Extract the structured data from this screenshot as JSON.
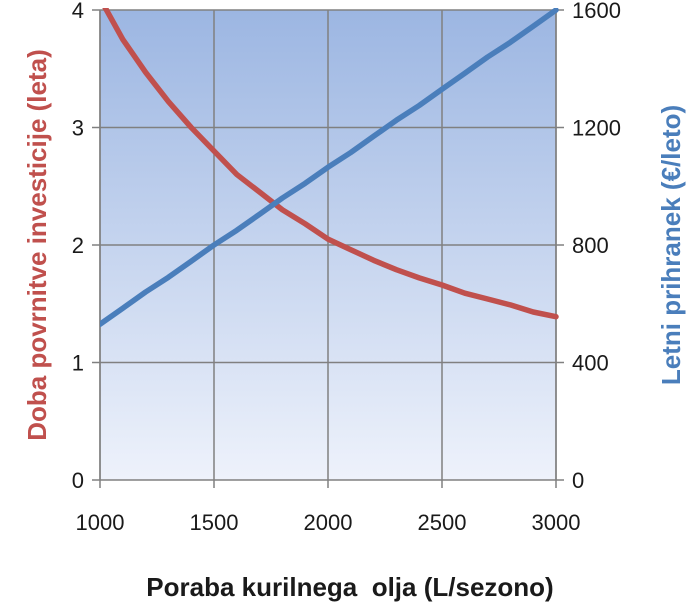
{
  "chart_data": {
    "type": "line",
    "xlabel": "Poraba kurilnega  olja (L/sezono)",
    "ylabel_left": "Doba povrnitve  investicije  (leta)",
    "ylabel_right": "Letni prihranek  (€/leto)",
    "xlim": [
      1000,
      3000
    ],
    "ylim_left": [
      0,
      4
    ],
    "ylim_right": [
      0,
      1600
    ],
    "x_ticks": [
      "1000",
      "1500",
      "2000",
      "2500",
      "3000"
    ],
    "y_left_ticks": [
      "0",
      "1",
      "2",
      "3",
      "4"
    ],
    "y_right_ticks": [
      "0",
      "400",
      "800",
      "1200",
      "1600"
    ],
    "grid": true,
    "series": [
      {
        "axis": "left",
        "color": "#c0504d",
        "x": [
          1000,
          1100,
          1200,
          1300,
          1400,
          1500,
          1600,
          1700,
          1800,
          1900,
          2000,
          2100,
          2200,
          2300,
          2400,
          2500,
          2600,
          2700,
          2800,
          2900,
          3000
        ],
        "values": [
          4.1,
          3.75,
          3.47,
          3.22,
          3.0,
          2.8,
          2.6,
          2.45,
          2.3,
          2.18,
          2.05,
          1.96,
          1.87,
          1.79,
          1.72,
          1.66,
          1.59,
          1.54,
          1.49,
          1.43,
          1.39
        ]
      },
      {
        "axis": "right",
        "color": "#4a7ebb",
        "x": [
          1000,
          1100,
          1200,
          1300,
          1400,
          1500,
          1600,
          1700,
          1800,
          1900,
          2000,
          2100,
          2200,
          2300,
          2400,
          2500,
          2600,
          2700,
          2800,
          2900,
          3000
        ],
        "values": [
          530,
          585,
          640,
          690,
          745,
          800,
          850,
          905,
          960,
          1010,
          1065,
          1115,
          1170,
          1225,
          1275,
          1330,
          1385,
          1440,
          1490,
          1545,
          1600
        ]
      }
    ]
  }
}
